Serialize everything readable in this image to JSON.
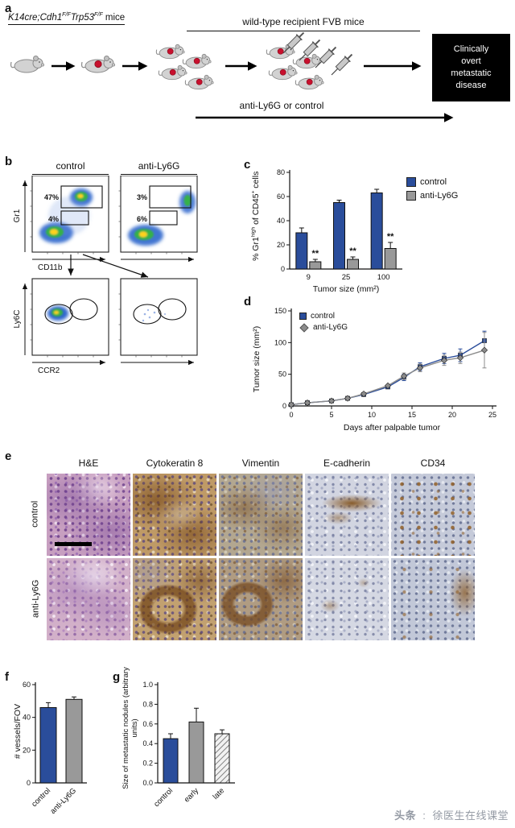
{
  "watermark": {
    "brand": "头条",
    "separator": ":",
    "account": "徐医生在线课堂"
  },
  "panel_a": {
    "label": "a",
    "donor": {
      "s1": "K14cre;Cdh1",
      "sup1": "F/F",
      "s2": "Trp53",
      "sup2": "F/F",
      "s3": " mice"
    },
    "recipient_label": "wild-type recipient FVB mice",
    "treatment_label": "anti-Ly6G or control",
    "outcome_lines": [
      "Clinically",
      "overt",
      "metastatic",
      "disease"
    ]
  },
  "panel_b": {
    "label": "b",
    "headers": [
      "control",
      "anti-Ly6G"
    ],
    "axes": {
      "top_y": "Gr1",
      "top_x": "CD11b",
      "bottom_y": "Ly6C",
      "bottom_x": "CCR2"
    },
    "gates": {
      "control_top": "47%",
      "control_bottom": "4%",
      "anti_top": "3%",
      "anti_bottom": "6%"
    }
  },
  "panel_c": {
    "label": "c",
    "legend": [
      "control",
      "anti-Ly6G"
    ],
    "ylabel": {
      "pre": "% Gr1",
      "sup1": "high",
      "mid": " of CD45",
      "sup2": "+",
      "post": " cells"
    }
  },
  "panel_d": {
    "label": "d",
    "legend": [
      "control",
      "anti-Ly6G"
    ],
    "ylabel": "Tumor size (mm²)"
  },
  "panel_e": {
    "label": "e",
    "col_headers": [
      "H&E",
      "Cytokeratin 8",
      "Vimentin",
      "E-cadherin",
      "CD34"
    ],
    "row_labels": [
      "control",
      "anti-Ly6G"
    ]
  },
  "panel_f": {
    "label": "f",
    "ylabel": "# vessels/FOV"
  },
  "panel_g": {
    "label": "g",
    "ylabel": "Size of metastatic nodules (arbitrary units)"
  },
  "colors": {
    "control_blue": "#2a4d9b",
    "anti_gray": "#999999"
  },
  "chart_data": [
    {
      "id": "c",
      "type": "bar",
      "categories": [
        "9",
        "25",
        "100"
      ],
      "xlabel": "Tumor size (mm²)",
      "ylabel": "% Gr1high of CD45+ cells",
      "ylim": [
        0,
        80
      ],
      "yticks": [
        0,
        20,
        40,
        60,
        80
      ],
      "series": [
        {
          "name": "control",
          "color": "#2a4d9b",
          "values": [
            30,
            55,
            63
          ],
          "errors": [
            4,
            2,
            3
          ]
        },
        {
          "name": "anti-Ly6G",
          "color": "#999999",
          "values": [
            6,
            8,
            17
          ],
          "errors": [
            2,
            2,
            5
          ],
          "sig": [
            "**",
            "**",
            "**"
          ]
        }
      ],
      "legend_position": "right"
    },
    {
      "id": "d",
      "type": "line",
      "x": [
        0,
        2,
        5,
        7,
        9,
        12,
        14,
        16,
        19,
        21,
        24
      ],
      "xlabel": "Days after palpable tumor",
      "ylabel": "Tumor size (mm²)",
      "xlim": [
        0,
        25
      ],
      "xticks": [
        0,
        5,
        10,
        15,
        20,
        25
      ],
      "ylim": [
        0,
        150
      ],
      "yticks": [
        0,
        50,
        100,
        150
      ],
      "series": [
        {
          "name": "control",
          "color": "#2a4d9b",
          "marker": "square",
          "values": [
            2,
            5,
            8,
            12,
            18,
            30,
            45,
            62,
            75,
            80,
            103
          ],
          "errors": [
            0,
            0,
            0,
            0,
            0,
            0,
            5,
            6,
            8,
            10,
            15
          ]
        },
        {
          "name": "anti-Ly6G",
          "color": "#8c8c8c",
          "marker": "diamond",
          "values": [
            2,
            5,
            8,
            12,
            19,
            32,
            47,
            60,
            72,
            76,
            88
          ],
          "errors": [
            0,
            0,
            0,
            0,
            0,
            0,
            5,
            6,
            8,
            9,
            28
          ]
        }
      ],
      "legend_position": "top-left"
    },
    {
      "id": "f",
      "type": "bar",
      "categories": [
        "control",
        "anti-Ly6G"
      ],
      "xlabel": "",
      "ylabel": "# vessels/FOV",
      "ylim": [
        0,
        60
      ],
      "yticks": [
        0,
        20,
        40,
        60
      ],
      "values": [
        46,
        51
      ],
      "errors": [
        3,
        1.5
      ],
      "colors": [
        "#2a4d9b",
        "#999999"
      ]
    },
    {
      "id": "g",
      "type": "bar",
      "categories": [
        "control",
        "early",
        "late"
      ],
      "xlabel": "",
      "ylabel": "Size of metastatic nodules (arbitrary units)",
      "ylim": [
        0,
        1
      ],
      "yticks": [
        "0.0",
        "0.2",
        "0.4",
        "0.6",
        "0.8",
        "1.0"
      ],
      "values": [
        0.45,
        0.62,
        0.5
      ],
      "errors": [
        0.05,
        0.14,
        0.04
      ],
      "colors": [
        "#2a4d9b",
        "#999999",
        "hatch"
      ]
    }
  ]
}
